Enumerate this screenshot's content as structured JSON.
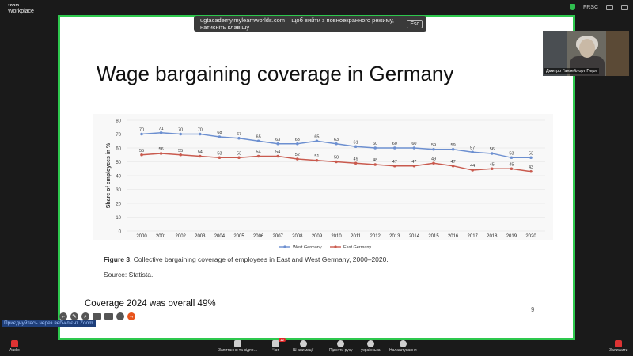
{
  "app": {
    "logo_line1": "zoom",
    "logo_line2": "Workplace"
  },
  "top_right": {
    "status": "FRSC"
  },
  "fullscreen_banner": {
    "text": "ugtacademy.mylearnworlds.com – щоб вийти з повноекранного режиму, натисніть клавішу",
    "key": "Esc"
  },
  "slide": {
    "title": "Wage bargaining coverage in Germany",
    "caption_bold": "Figure 3",
    "caption_rest": ". Collective bargaining coverage of employees in East and West Germany, 2000–2020.",
    "source": "Source: Statista.",
    "coverage_note": "Coverage 2024 was overall 49%",
    "page_number": "9"
  },
  "chart_data": {
    "type": "line",
    "title": "",
    "xlabel": "",
    "ylabel": "Share of employees in %",
    "ylim": [
      0,
      80
    ],
    "yticks": [
      "0",
      "10",
      "20",
      "30",
      "40",
      "50",
      "60",
      "70",
      "80"
    ],
    "x": [
      "2000",
      "2001",
      "2002",
      "2003",
      "2004",
      "2005",
      "2006",
      "2007",
      "2008",
      "2009",
      "2010",
      "2011",
      "2012",
      "2013",
      "2014",
      "2015",
      "2016",
      "2017",
      "2018",
      "2019",
      "2020"
    ],
    "series": [
      {
        "name": "West Germany",
        "color": "#6c8fd0",
        "values": [
          70,
          71,
          70,
          70,
          68,
          67,
          65,
          63,
          63,
          65,
          63,
          61,
          60,
          60,
          60,
          59,
          59,
          57,
          56,
          53,
          53
        ]
      },
      {
        "name": "East Germany",
        "color": "#c95a4e",
        "values": [
          55,
          56,
          55,
          54,
          53,
          53,
          54,
          54,
          52,
          51,
          50,
          49,
          48,
          47,
          47,
          49,
          47,
          44,
          45,
          45,
          43
        ]
      }
    ],
    "legend_position": "bottom"
  },
  "annotation_bar": {
    "join_link": "Приєднуйтесь через веб-клієнт Zoom"
  },
  "video_tile": {
    "name": "Дмитро Ганзейлорт Перл"
  },
  "toolbar": {
    "audio": "Audio",
    "record": "Запитання та відпо…",
    "chat": "Чат",
    "chat_badge": "12",
    "annotate": "Ш-анимації",
    "raise_hand": "Підняти руку",
    "reactions": "українська",
    "settings": "Налаштування",
    "leave": "Залишити"
  }
}
